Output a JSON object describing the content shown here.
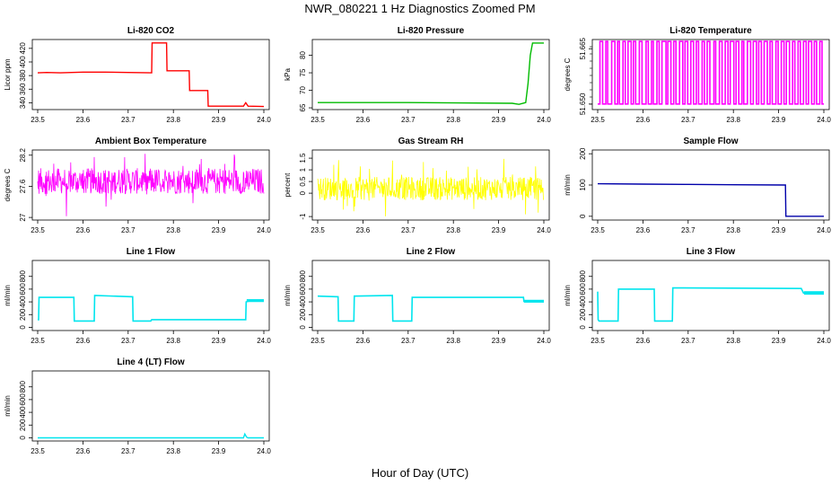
{
  "figure": {
    "title": "NWR_080221  1 Hz Diagnostics Zoomed PM",
    "xlabel": "Hour of Day (UTC)"
  },
  "chart_data": [
    {
      "id": "co2",
      "type": "line",
      "title": "Li-820 CO2",
      "ylabel": "Licor ppm",
      "color": "#ff0000",
      "xlim": [
        23.5,
        24.0
      ],
      "ylim": [
        330,
        433
      ],
      "xticks": [
        "23.5",
        "23.6",
        "23.7",
        "23.8",
        "23.9",
        "24.0"
      ],
      "yticks": [
        340,
        360,
        380,
        400,
        420
      ],
      "x": [
        23.5,
        23.52,
        23.55,
        23.6,
        23.65,
        23.7,
        23.752,
        23.753,
        23.785,
        23.786,
        23.835,
        23.836,
        23.876,
        23.877,
        23.955,
        23.96,
        23.965,
        24.0
      ],
      "y": [
        384.0,
        384.5,
        384.0,
        385.0,
        385.0,
        384.5,
        384.0,
        428.0,
        428.0,
        387.0,
        387.0,
        358.0,
        358.0,
        335.0,
        335.0,
        340.0,
        335.0,
        334.5
      ]
    },
    {
      "id": "pressure",
      "type": "line",
      "title": "Li-820 Pressure",
      "ylabel": "kPa",
      "color": "#00bb00",
      "xlim": [
        23.5,
        24.0
      ],
      "ylim": [
        64.5,
        84.5
      ],
      "xticks": [
        "23.5",
        "23.6",
        "23.7",
        "23.8",
        "23.9",
        "24.0"
      ],
      "yticks": [
        65,
        70,
        75,
        80
      ],
      "x": [
        23.5,
        23.7,
        23.93,
        23.945,
        23.96,
        23.965,
        23.97,
        23.975,
        24.0
      ],
      "y": [
        66.5,
        66.5,
        66.3,
        66.0,
        66.5,
        72.0,
        80.0,
        83.5,
        83.5
      ]
    },
    {
      "id": "temperature",
      "type": "line",
      "title": "Li-820 Temperature",
      "ylabel": "degrees C",
      "color": "#ff00ff",
      "xlim": [
        23.5,
        24.0
      ],
      "ylim": [
        51.6485,
        51.6675
      ],
      "xticks": [
        "23.5",
        "23.6",
        "23.7",
        "23.8",
        "23.9",
        "24.0"
      ],
      "ytick_labels": [
        "51.650",
        "51.665"
      ],
      "ytick_values": [
        51.65,
        51.665
      ],
      "levels": [
        51.65,
        51.667
      ],
      "switch_x": [
        23.505,
        23.511,
        23.518,
        23.522,
        23.531,
        23.538,
        23.544,
        23.548,
        23.556,
        23.561,
        23.567,
        23.574,
        23.579,
        23.584,
        23.592,
        23.598,
        23.607,
        23.612,
        23.619,
        23.623,
        23.631,
        23.636,
        23.642,
        23.651,
        23.655,
        23.662,
        23.668,
        23.673,
        23.681,
        23.688,
        23.693,
        23.699,
        23.706,
        23.712,
        23.718,
        23.723,
        23.731,
        23.736,
        23.742,
        23.748,
        23.757,
        23.761,
        23.769,
        23.775,
        23.782,
        23.788,
        23.793,
        23.801,
        23.806,
        23.812,
        23.819,
        23.823,
        23.831,
        23.838,
        23.844,
        23.851,
        23.856,
        23.862,
        23.868,
        23.875,
        23.881,
        23.886,
        23.894,
        23.899,
        23.906,
        23.912,
        23.917,
        23.924,
        23.931,
        23.936,
        23.943,
        23.948,
        23.955,
        23.961,
        23.966,
        23.973,
        23.979,
        23.984,
        23.991,
        23.996
      ]
    },
    {
      "id": "ambient",
      "type": "line",
      "title": "Ambient Box Temperature",
      "ylabel": "degrees C",
      "color": "#ff00ff",
      "xlim": [
        23.5,
        24.0
      ],
      "ylim": [
        26.95,
        28.3
      ],
      "xticks": [
        "23.5",
        "23.6",
        "23.7",
        "23.8",
        "23.9",
        "24.0"
      ],
      "yticks": [
        27.0,
        27.6,
        28.2
      ],
      "noise": {
        "center": 27.7,
        "low": 27.45,
        "high": 27.95,
        "spike_low": 27.0,
        "spike_high": 28.25
      }
    },
    {
      "id": "rh",
      "type": "line",
      "title": "Gas Stream RH",
      "ylabel": "percent",
      "color": "#ffff00",
      "xlim": [
        23.5,
        24.0
      ],
      "ylim": [
        -1.15,
        1.85
      ],
      "xticks": [
        "23.5",
        "23.6",
        "23.7",
        "23.8",
        "23.9",
        "24.0"
      ],
      "yticks": [
        -1.0,
        0.0,
        0.5,
        1.0,
        1.5
      ],
      "noise": {
        "center": 0.2,
        "low": -0.3,
        "high": 0.7,
        "spike_low": -1.0,
        "spike_high": 1.5
      }
    },
    {
      "id": "sample",
      "type": "line",
      "title": "Sample Flow",
      "ylabel": "ml/min",
      "color": "#0000aa",
      "xlim": [
        23.5,
        24.0
      ],
      "ylim": [
        -12,
        212
      ],
      "xticks": [
        "23.5",
        "23.6",
        "23.7",
        "23.8",
        "23.9",
        "24.0"
      ],
      "yticks": [
        0,
        100,
        200
      ],
      "x": [
        23.5,
        23.6,
        23.7,
        23.8,
        23.915,
        23.916,
        24.0
      ],
      "y": [
        104,
        103,
        102,
        101,
        100,
        0,
        0
      ]
    },
    {
      "id": "line1",
      "type": "line",
      "title": "Line 1 Flow",
      "ylabel": "ml/min",
      "color": "#00e5ee",
      "xlim": [
        23.5,
        24.0
      ],
      "ylim": [
        -50,
        1050
      ],
      "xticks": [
        "23.5",
        "23.6",
        "23.7",
        "23.8",
        "23.9",
        "24.0"
      ],
      "yticks": [
        0,
        200,
        400,
        600,
        800
      ],
      "x": [
        23.5,
        23.502,
        23.503,
        23.58,
        23.581,
        23.625,
        23.626,
        23.71,
        23.711,
        23.75,
        23.752,
        23.96,
        23.961,
        23.97,
        24.0
      ],
      "y": [
        120,
        120,
        470,
        470,
        100,
        100,
        500,
        480,
        100,
        100,
        120,
        120,
        400,
        420,
        420
      ]
    },
    {
      "id": "line2",
      "type": "line",
      "title": "Line 2 Flow",
      "ylabel": "ml/min",
      "color": "#00e5ee",
      "xlim": [
        23.5,
        24.0
      ],
      "ylim": [
        -50,
        1050
      ],
      "xticks": [
        "23.5",
        "23.6",
        "23.7",
        "23.8",
        "23.9",
        "24.0"
      ],
      "yticks": [
        0,
        200,
        400,
        600,
        800
      ],
      "x": [
        23.5,
        23.545,
        23.546,
        23.58,
        23.581,
        23.665,
        23.666,
        23.708,
        23.709,
        23.95,
        23.955,
        23.956,
        24.0
      ],
      "y": [
        490,
        480,
        100,
        100,
        490,
        500,
        100,
        100,
        470,
        470,
        470,
        410,
        410
      ]
    },
    {
      "id": "line3",
      "type": "line",
      "title": "Line 3 Flow",
      "ylabel": "ml/min",
      "color": "#00e5ee",
      "xlim": [
        23.5,
        24.0
      ],
      "ylim": [
        -50,
        1050
      ],
      "xticks": [
        "23.5",
        "23.6",
        "23.7",
        "23.8",
        "23.9",
        "24.0"
      ],
      "yticks": [
        0,
        200,
        400,
        600,
        800
      ],
      "x": [
        23.5,
        23.501,
        23.503,
        23.545,
        23.546,
        23.625,
        23.626,
        23.665,
        23.666,
        23.95,
        23.955,
        24.0
      ],
      "y": [
        560,
        120,
        100,
        100,
        600,
        600,
        100,
        100,
        620,
        610,
        540,
        540
      ]
    },
    {
      "id": "line4",
      "type": "line",
      "title": "Line 4 (LT) Flow",
      "ylabel": "ml/min",
      "color": "#00e5ee",
      "xlim": [
        23.5,
        24.0
      ],
      "ylim": [
        -50,
        1050
      ],
      "xticks": [
        "23.5",
        "23.6",
        "23.7",
        "23.8",
        "23.9",
        "24.0"
      ],
      "yticks": [
        0,
        200,
        400,
        600,
        800
      ],
      "x": [
        23.5,
        23.7,
        23.955,
        23.958,
        23.962,
        23.965,
        24.0
      ],
      "y": [
        0,
        0,
        0,
        60,
        10,
        0,
        0
      ]
    }
  ]
}
